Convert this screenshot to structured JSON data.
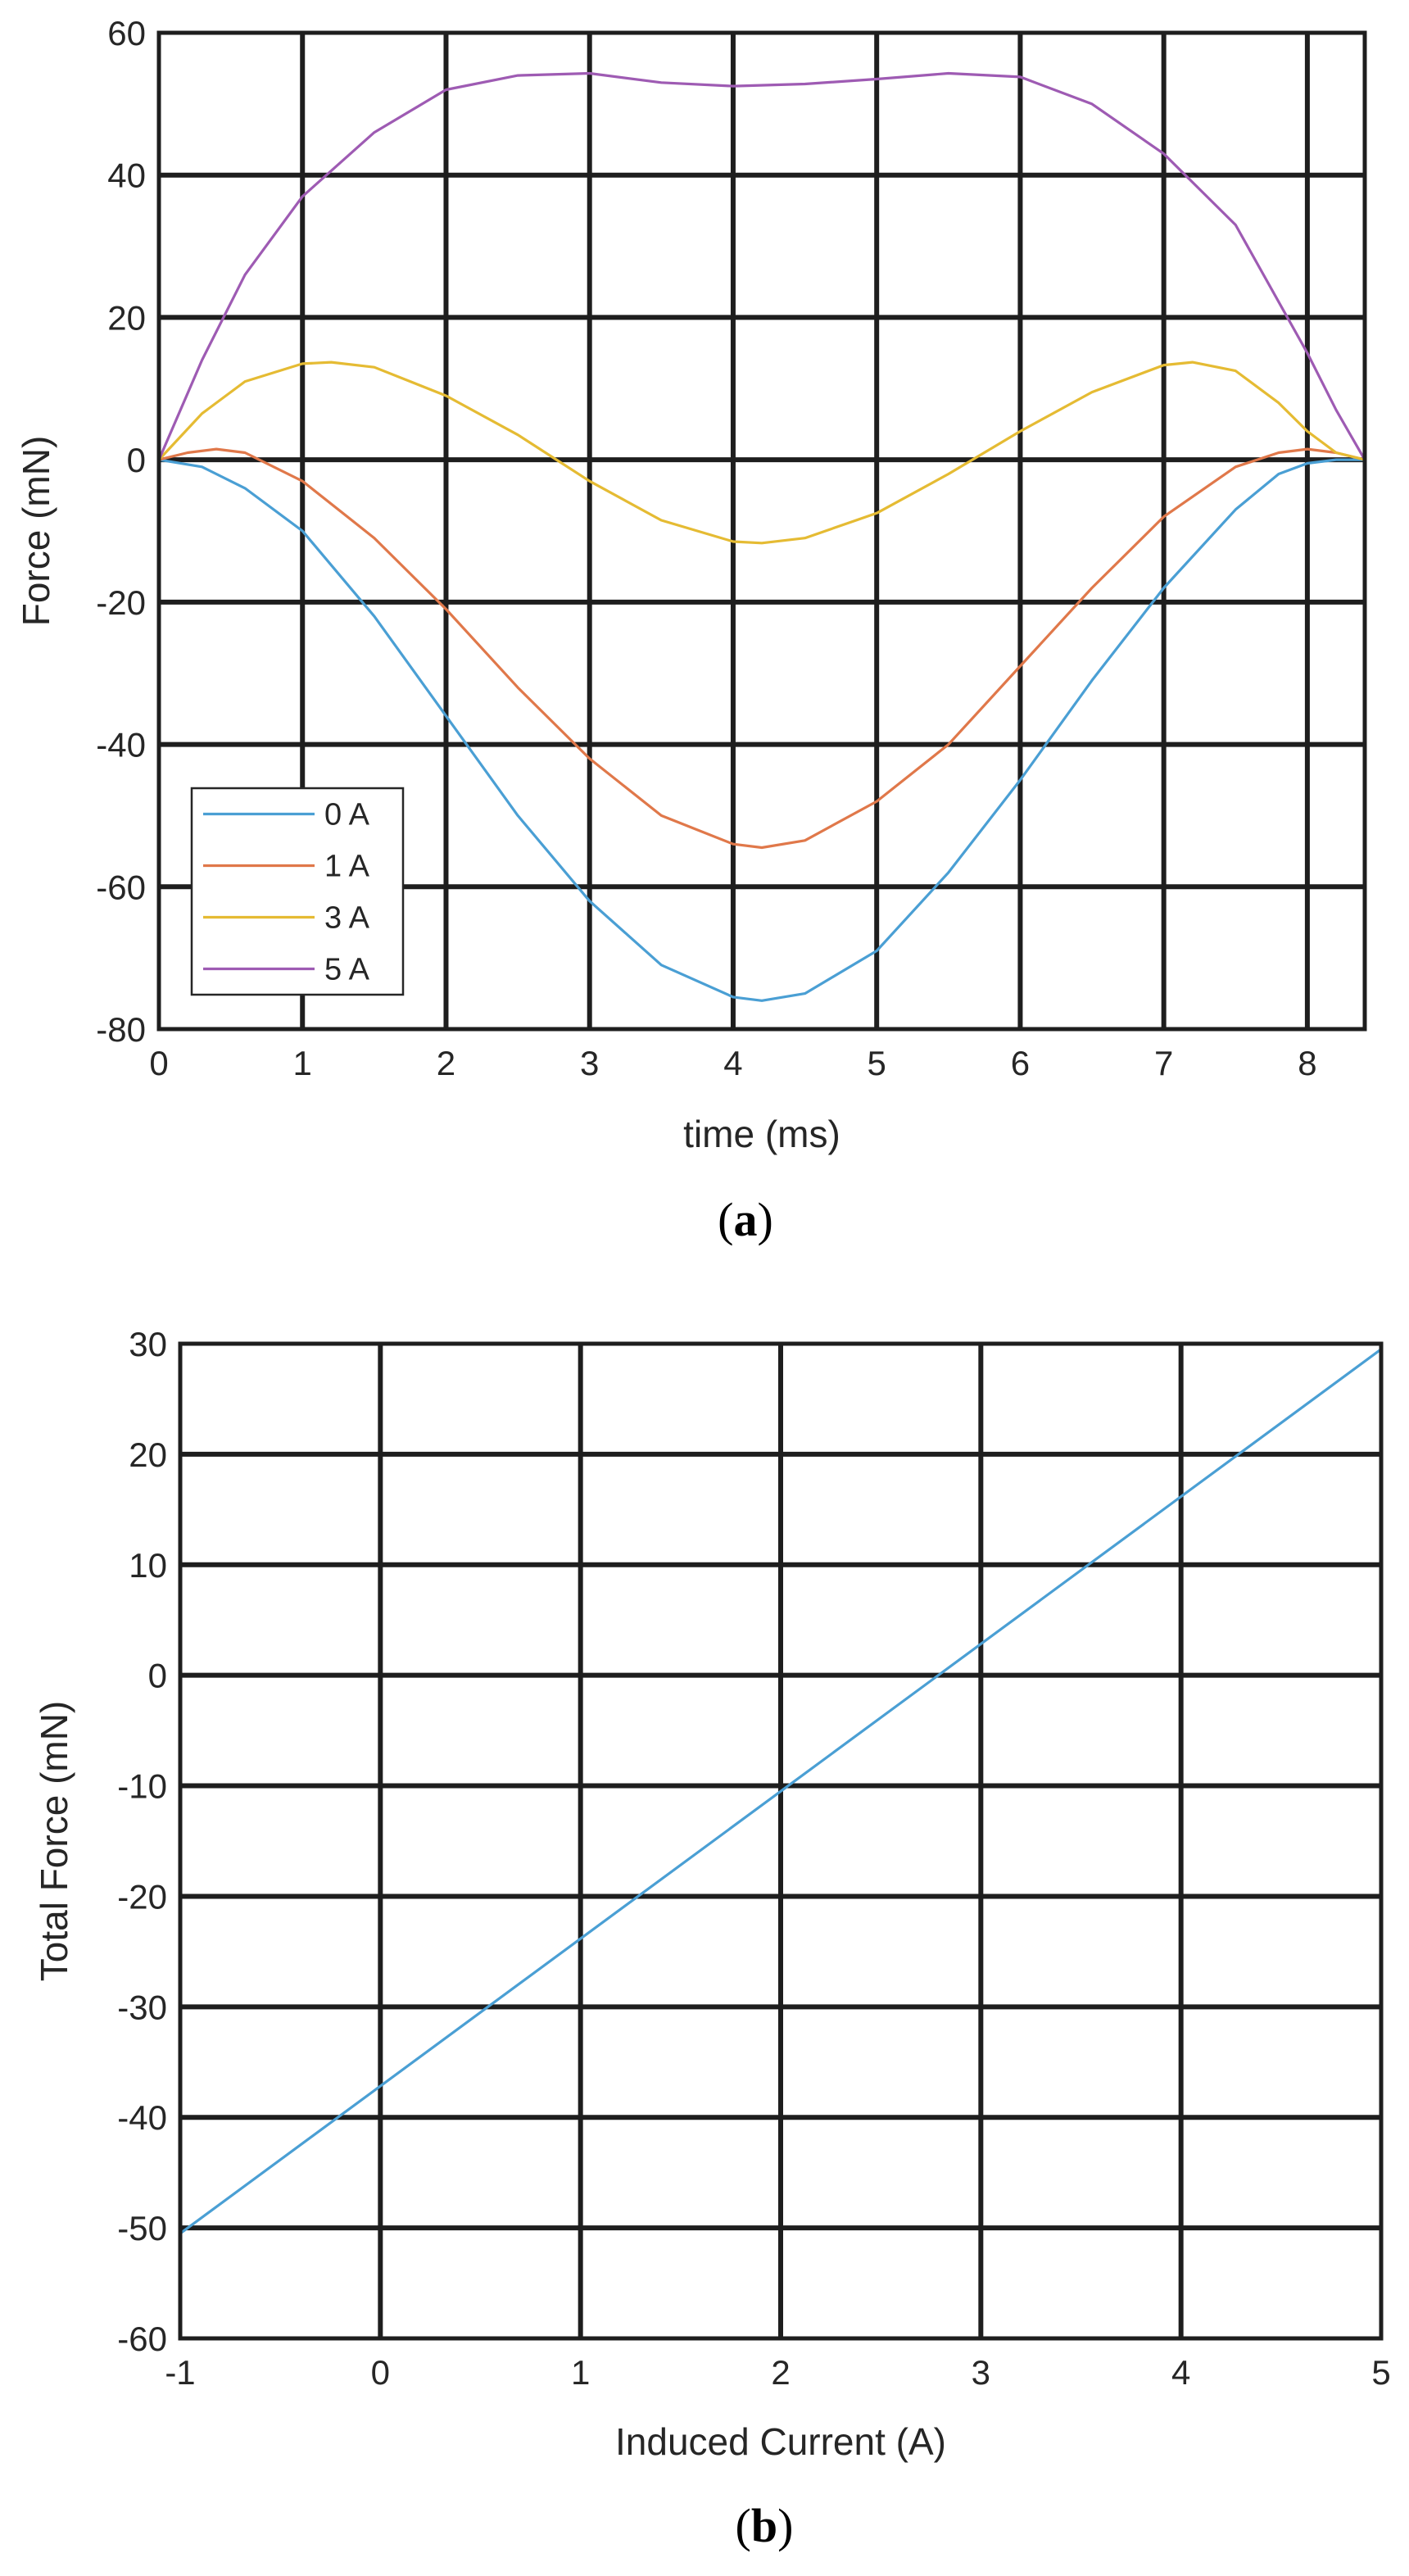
{
  "chart_data": [
    {
      "type": "line",
      "panel": "a",
      "caption_open": "(",
      "caption_letter": "a",
      "caption_close": ")",
      "title": "",
      "xlabel": "time (ms)",
      "ylabel": "Force (mN)",
      "xlim": [
        0,
        8.4
      ],
      "ylim": [
        -80,
        60
      ],
      "xticks": [
        0,
        1,
        2,
        3,
        4,
        5,
        6,
        7,
        8
      ],
      "yticks": [
        60,
        40,
        20,
        0,
        -20,
        -40,
        -60,
        -80
      ],
      "grid": true,
      "legend_position": "bottom-left",
      "series": [
        {
          "name": "0 A",
          "color": "#4a9fd4",
          "x": [
            0,
            0.3,
            0.6,
            1.0,
            1.5,
            2.0,
            2.5,
            3.0,
            3.5,
            4.0,
            4.2,
            4.5,
            5.0,
            5.5,
            6.0,
            6.5,
            7.0,
            7.5,
            7.8,
            8.0,
            8.2,
            8.4
          ],
          "y": [
            0,
            -1,
            -4,
            -10,
            -22,
            -36,
            -50,
            -62,
            -71,
            -75.5,
            -76,
            -75,
            -69,
            -58,
            -45,
            -31,
            -18,
            -7,
            -2,
            -0.5,
            0,
            0
          ]
        },
        {
          "name": "1 A",
          "color": "#e0784a",
          "x": [
            0,
            0.2,
            0.4,
            0.6,
            1.0,
            1.5,
            2.0,
            2.5,
            3.0,
            3.5,
            4.0,
            4.2,
            4.5,
            5.0,
            5.5,
            6.0,
            6.5,
            7.0,
            7.5,
            7.8,
            8.0,
            8.2,
            8.4
          ],
          "y": [
            0,
            1,
            1.5,
            1,
            -3,
            -11,
            -21,
            -32,
            -42,
            -50,
            -54,
            -54.5,
            -53.5,
            -48,
            -40,
            -29,
            -18,
            -8,
            -1,
            1,
            1.5,
            1,
            0
          ]
        },
        {
          "name": "3 A",
          "color": "#e5bb33",
          "x": [
            0,
            0.3,
            0.6,
            1.0,
            1.2,
            1.5,
            2.0,
            2.5,
            3.0,
            3.5,
            4.0,
            4.2,
            4.5,
            5.0,
            5.5,
            6.0,
            6.5,
            7.0,
            7.2,
            7.5,
            7.8,
            8.0,
            8.2,
            8.4
          ],
          "y": [
            0,
            6.5,
            11,
            13.5,
            13.7,
            13,
            9,
            3.5,
            -3,
            -8.5,
            -11.5,
            -11.7,
            -11,
            -7.5,
            -2,
            4,
            9.5,
            13.3,
            13.7,
            12.5,
            8,
            4,
            1,
            0
          ]
        },
        {
          "name": "5 A",
          "color": "#9e5bb3",
          "x": [
            0,
            0.3,
            0.6,
            1.0,
            1.5,
            2.0,
            2.5,
            3.0,
            3.5,
            4.0,
            4.5,
            5.0,
            5.5,
            6.0,
            6.5,
            7.0,
            7.5,
            8.0,
            8.2,
            8.4
          ],
          "y": [
            0,
            14,
            26,
            37,
            46,
            52,
            54,
            54.3,
            53,
            52.5,
            52.8,
            53.5,
            54.3,
            53.8,
            50,
            43,
            33,
            15,
            7,
            0
          ]
        }
      ]
    },
    {
      "type": "line",
      "panel": "b",
      "caption_open": "(",
      "caption_letter": "b",
      "caption_close": ")",
      "title": "",
      "xlabel": "Induced Current (A)",
      "ylabel": "Total Force (mN)",
      "xlim": [
        -1,
        5
      ],
      "ylim": [
        -60,
        30
      ],
      "xticks": [
        -1,
        0,
        1,
        2,
        3,
        4,
        5
      ],
      "yticks": [
        30,
        20,
        10,
        0,
        -10,
        -20,
        -30,
        -40,
        -50,
        -60
      ],
      "grid": true,
      "series": [
        {
          "name": "Total Force",
          "color": "#4a9fd4",
          "x": [
            -1,
            5
          ],
          "y": [
            -50.5,
            29.5
          ]
        }
      ]
    }
  ]
}
